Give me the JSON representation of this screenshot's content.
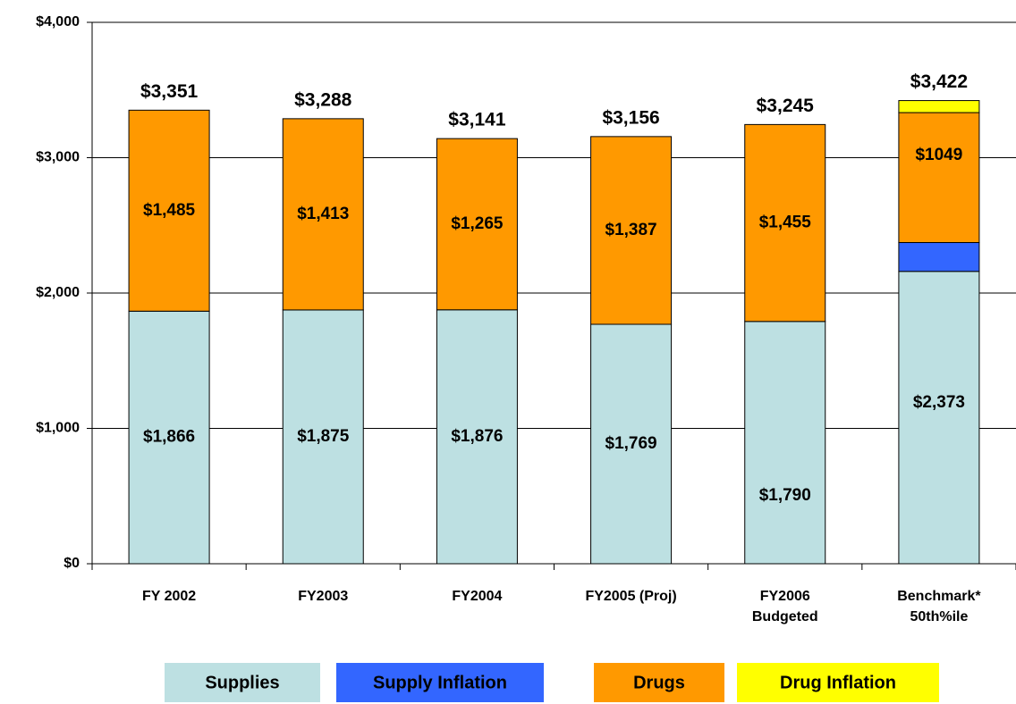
{
  "chart_data": {
    "type": "stacked_bar",
    "categories": [
      "FY 2002",
      "FY2003",
      "FY2004",
      "FY2005 (Proj)",
      "FY2006\nBudgeted",
      "Benchmark*\n50th%ile"
    ],
    "series": [
      {
        "name": "Supplies",
        "color": "#bde0e2",
        "values": [
          1866,
          1875,
          1876,
          1769,
          1790,
          2160
        ],
        "value_labels": [
          "$1,866",
          "$1,875",
          "$1,876",
          "$1,769",
          "$1,790",
          null
        ]
      },
      {
        "name": "Supply Inflation",
        "color": "#3366ff",
        "values": [
          null,
          null,
          null,
          null,
          null,
          213
        ]
      },
      {
        "name": "Drugs",
        "color": "#ff9900",
        "values": [
          1485,
          1413,
          1265,
          1387,
          1455,
          960
        ],
        "value_labels": [
          "$1,485",
          "$1,413",
          "$1,265",
          "$1,387",
          "$1,455",
          null
        ]
      },
      {
        "name": "Drug Inflation",
        "color": "#ffff00",
        "values": [
          null,
          null,
          null,
          null,
          null,
          89
        ]
      }
    ],
    "benchmark_labels": [
      "$2,373",
      "$1049"
    ],
    "totals": {
      "values": [
        3351,
        3288,
        3141,
        3156,
        3245,
        3422
      ],
      "labels": [
        "$3,351",
        "$3,288",
        "$3,141",
        "$3,156",
        "$3,245",
        "$3,422"
      ]
    },
    "ylim": [
      0,
      4000
    ],
    "yticks": [
      {
        "value": 0,
        "label": "$0"
      },
      {
        "value": 1000,
        "label": "$1,000"
      },
      {
        "value": 2000,
        "label": "$2,000"
      },
      {
        "value": 3000,
        "label": "$3,000"
      },
      {
        "value": 4000,
        "label": "$4,000"
      }
    ],
    "grid": true
  }
}
